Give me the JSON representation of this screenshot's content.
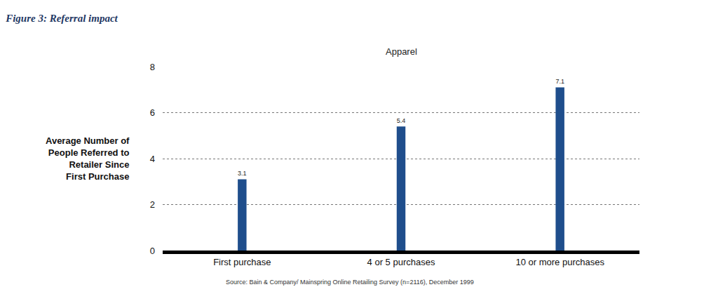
{
  "chart_data": {
    "type": "bar",
    "title": "Figure 3: Referral impact",
    "subtitle": "Apparel",
    "y_label": "Average Number of People Referred to Retailer Since First Purchase",
    "categories": [
      "First purchase",
      "4 or 5 purchases",
      "10 or more purchases"
    ],
    "values": [
      3.1,
      5.4,
      7.1
    ],
    "color": "#1f4e8c",
    "ylim": [
      0,
      8
    ],
    "yticks": [
      0,
      2,
      4,
      6,
      8
    ],
    "grid": true,
    "data_labels": true,
    "source": "Source: Bain & Company/ Mainspring Online Retailing Survey (n=2116), December 1999"
  }
}
